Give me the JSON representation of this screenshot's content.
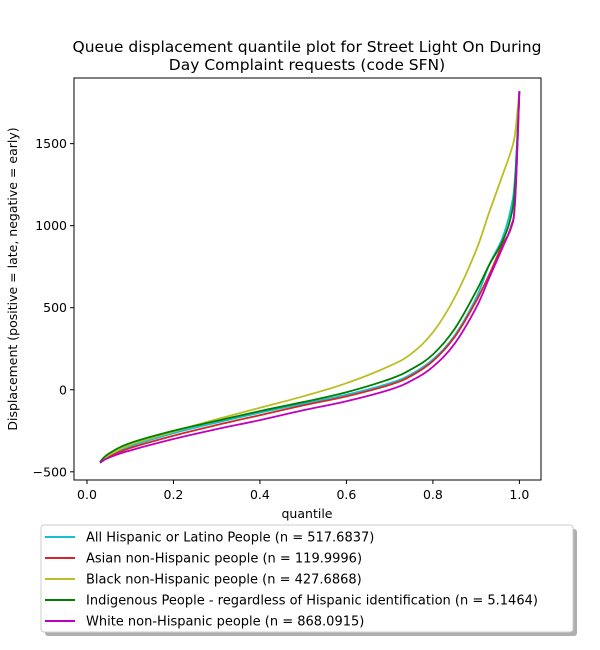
{
  "chart_data": {
    "type": "line",
    "title_lines": [
      "Queue displacement quantile plot for Street Light On During",
      "Day Complaint  requests (code SFN)"
    ],
    "xlabel": "quantile",
    "ylabel": "Displacement (positive = late, negative = early)",
    "xlim": [
      -0.03,
      1.05
    ],
    "ylim": [
      -550,
      1900
    ],
    "xticks": [
      0.0,
      0.2,
      0.4,
      0.6,
      0.8,
      1.0
    ],
    "xtick_labels": [
      "0.0",
      "0.2",
      "0.4",
      "0.6",
      "0.8",
      "1.0"
    ],
    "yticks": [
      -500,
      0,
      500,
      1000,
      1500
    ],
    "ytick_labels": [
      "−500",
      "0",
      "500",
      "1000",
      "1500"
    ],
    "grid": false,
    "legend_position": "below",
    "series": [
      {
        "name": "All Hispanic or Latino People (n = 517.6837)",
        "color": "#17becf",
        "x": [
          0.03,
          0.05,
          0.1,
          0.2,
          0.3,
          0.4,
          0.5,
          0.6,
          0.7,
          0.75,
          0.8,
          0.85,
          0.9,
          0.93,
          0.96,
          0.98,
          0.99,
          1.0
        ],
        "y": [
          -440,
          -405,
          -345,
          -265,
          -200,
          -140,
          -85,
          -30,
          40,
          95,
          185,
          330,
          560,
          760,
          920,
          1100,
          1300,
          1820
        ]
      },
      {
        "name": "Asian non-Hispanic people (n = 119.9996)",
        "color": "#d62728",
        "x": [
          0.03,
          0.05,
          0.1,
          0.2,
          0.3,
          0.4,
          0.5,
          0.6,
          0.7,
          0.75,
          0.8,
          0.85,
          0.9,
          0.93,
          0.96,
          0.98,
          0.99,
          1.0
        ],
        "y": [
          -445,
          -410,
          -355,
          -280,
          -215,
          -155,
          -95,
          -40,
          30,
          85,
          175,
          320,
          540,
          700,
          880,
          980,
          1150,
          1820
        ]
      },
      {
        "name": "Black non-Hispanic people (n = 427.6868)",
        "color": "#bcbd22",
        "x": [
          0.03,
          0.05,
          0.1,
          0.2,
          0.3,
          0.4,
          0.5,
          0.6,
          0.7,
          0.75,
          0.8,
          0.85,
          0.9,
          0.93,
          0.96,
          0.98,
          0.99,
          1.0
        ],
        "y": [
          -440,
          -400,
          -335,
          -255,
          -180,
          -110,
          -40,
          40,
          145,
          220,
          350,
          560,
          850,
          1080,
          1300,
          1450,
          1560,
          1820
        ]
      },
      {
        "name": "Indigenous People - regardless of Hispanic identification (n = 5.1464)",
        "color": "#008000",
        "x": [
          0.03,
          0.05,
          0.1,
          0.2,
          0.3,
          0.4,
          0.5,
          0.6,
          0.7,
          0.75,
          0.8,
          0.85,
          0.9,
          0.93,
          0.96,
          0.98,
          0.99,
          1.0
        ],
        "y": [
          -440,
          -390,
          -325,
          -250,
          -190,
          -130,
          -75,
          -15,
          65,
          125,
          215,
          370,
          600,
          760,
          900,
          1050,
          1250,
          1820
        ]
      },
      {
        "name": "White non-Hispanic people (n = 868.0915)",
        "color": "#bf00bf",
        "x": [
          0.03,
          0.05,
          0.1,
          0.2,
          0.3,
          0.4,
          0.5,
          0.6,
          0.7,
          0.75,
          0.8,
          0.85,
          0.9,
          0.93,
          0.96,
          0.98,
          0.99,
          1.0
        ],
        "y": [
          -445,
          -415,
          -370,
          -300,
          -240,
          -185,
          -125,
          -70,
          0,
          55,
          140,
          280,
          500,
          680,
          860,
          990,
          1150,
          1820
        ]
      }
    ]
  }
}
